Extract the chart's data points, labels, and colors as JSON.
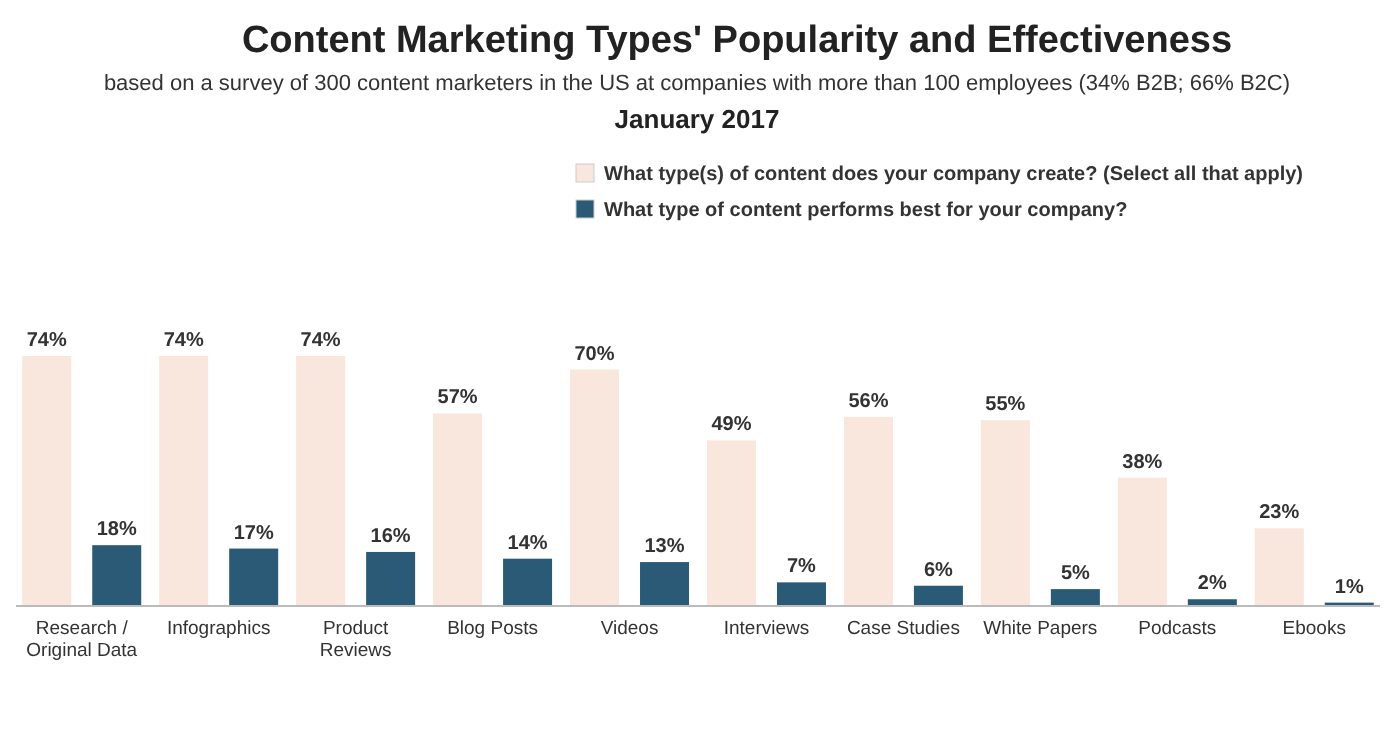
{
  "chart_data": {
    "type": "bar",
    "title": "Content Marketing Types' Popularity and Effectiveness",
    "subtitle": "based on a survey of 300 content marketers in the US at companies with more than 100 employees (34% B2B; 66% B2C)",
    "annotations": [
      "January 2017"
    ],
    "categories": [
      "Research / Original Data",
      "Infographics",
      "Product Reviews",
      "Blog Posts",
      "Videos",
      "Interviews",
      "Case Studies",
      "White Papers",
      "Podcasts",
      "Ebooks"
    ],
    "series": [
      {
        "name": "What type(s) of content does your company create? (Select all that apply)",
        "color": "#f9e6dd",
        "values": [
          74,
          74,
          74,
          57,
          70,
          49,
          56,
          55,
          38,
          23
        ],
        "value_labels": [
          "74%",
          "74%",
          "74%",
          "57%",
          "70%",
          "49%",
          "56%",
          "55%",
          "38%",
          "23%"
        ]
      },
      {
        "name": "What type of content performs best for your company?",
        "color": "#2b5a76",
        "values": [
          18,
          17,
          16,
          14,
          13,
          7,
          6,
          5,
          2,
          1
        ],
        "value_labels": [
          "18%",
          "17%",
          "16%",
          "14%",
          "13%",
          "7%",
          "6%",
          "5%",
          "2%",
          "1%"
        ]
      }
    ],
    "legend": "top"
  }
}
